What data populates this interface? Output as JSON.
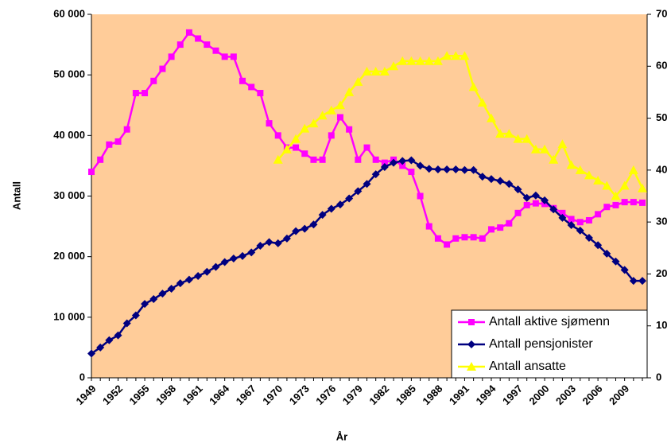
{
  "chart_data": {
    "type": "line",
    "y_label": "Antall",
    "x_label": "År",
    "categories": [
      "1949",
      null,
      null,
      "1952",
      null,
      null,
      "1955",
      null,
      null,
      "1958",
      null,
      null,
      "1961",
      null,
      null,
      "1964",
      null,
      null,
      "1967",
      null,
      null,
      "1970",
      null,
      null,
      "1973",
      null,
      null,
      "1976",
      null,
      null,
      "1979",
      null,
      null,
      "1982",
      null,
      null,
      "1985",
      null,
      null,
      "1988",
      null,
      null,
      "1991",
      null,
      null,
      "1994",
      null,
      null,
      "1997",
      null,
      null,
      "2000",
      null,
      null,
      "2003",
      null,
      null,
      "2006",
      null,
      null,
      "2009",
      null,
      null
    ],
    "ylim": [
      0,
      60000
    ],
    "yticks": [
      {
        "value": 0,
        "label": "0"
      },
      {
        "value": 10000,
        "label": "10 000"
      },
      {
        "value": 20000,
        "label": "20 000"
      },
      {
        "value": 30000,
        "label": "30 000"
      },
      {
        "value": 40000,
        "label": "40 000"
      },
      {
        "value": 50000,
        "label": "50 000"
      },
      {
        "value": 60000,
        "label": "60 000"
      }
    ],
    "y2lim": [
      0,
      70
    ],
    "y2ticks": [
      0,
      10,
      20,
      30,
      40,
      50,
      60,
      70
    ],
    "background": "#FFCC99",
    "legend": "lower right",
    "series": [
      {
        "name": "Antall aktive sjømenn",
        "color": "#FF00FF",
        "marker": "square",
        "values": [
          34000,
          36000,
          38500,
          39000,
          41000,
          47000,
          47000,
          49000,
          51000,
          53000,
          55000,
          57000,
          56000,
          55000,
          54000,
          53000,
          53000,
          49000,
          48000,
          47000,
          42000,
          40000,
          38000,
          38000,
          37000,
          36000,
          36000,
          40000,
          43000,
          41000,
          36000,
          38000,
          36000,
          35500,
          36000,
          35000,
          34000,
          30000,
          25000,
          23000,
          22000,
          23000,
          23200,
          23200,
          23000,
          24500,
          24800,
          25500,
          27200,
          28500,
          28800,
          28700,
          28000,
          27200,
          26200,
          25700,
          26000,
          27000,
          28200,
          28500,
          29000,
          29000,
          28900
        ]
      },
      {
        "name": "Antall pensjonister",
        "color": "#000080",
        "marker": "diamond",
        "values": [
          4000,
          5000,
          6200,
          7000,
          9000,
          10300,
          12200,
          13000,
          13900,
          14700,
          15600,
          16200,
          16800,
          17500,
          18300,
          19100,
          19700,
          20100,
          20700,
          21800,
          22400,
          22200,
          23000,
          24200,
          24600,
          25300,
          26900,
          27900,
          28600,
          29600,
          30800,
          32000,
          33600,
          34800,
          35500,
          35800,
          35900,
          35000,
          34500,
          34400,
          34400,
          34400,
          34300,
          34300,
          33200,
          32800,
          32500,
          32000,
          31100,
          29700,
          30100,
          29300,
          27800,
          26400,
          25200,
          24300,
          23100,
          21900,
          20500,
          19200,
          17800,
          16000,
          16000
        ]
      },
      {
        "name": "Antall ansatte",
        "color": "#FFFF00",
        "marker": "triangle",
        "axis": "y2",
        "values": [
          null,
          null,
          null,
          null,
          null,
          null,
          null,
          null,
          null,
          null,
          null,
          null,
          null,
          null,
          null,
          null,
          null,
          null,
          null,
          null,
          null,
          42,
          44,
          46,
          48,
          49,
          50.5,
          51.5,
          52.5,
          55,
          57,
          59,
          59,
          59,
          60,
          61,
          61,
          61,
          61,
          61,
          62,
          62,
          62,
          56,
          53,
          50,
          47,
          47,
          46,
          46,
          44,
          44,
          42,
          45,
          41,
          40,
          39,
          38,
          37,
          35,
          37,
          40,
          36.5
        ]
      }
    ]
  }
}
